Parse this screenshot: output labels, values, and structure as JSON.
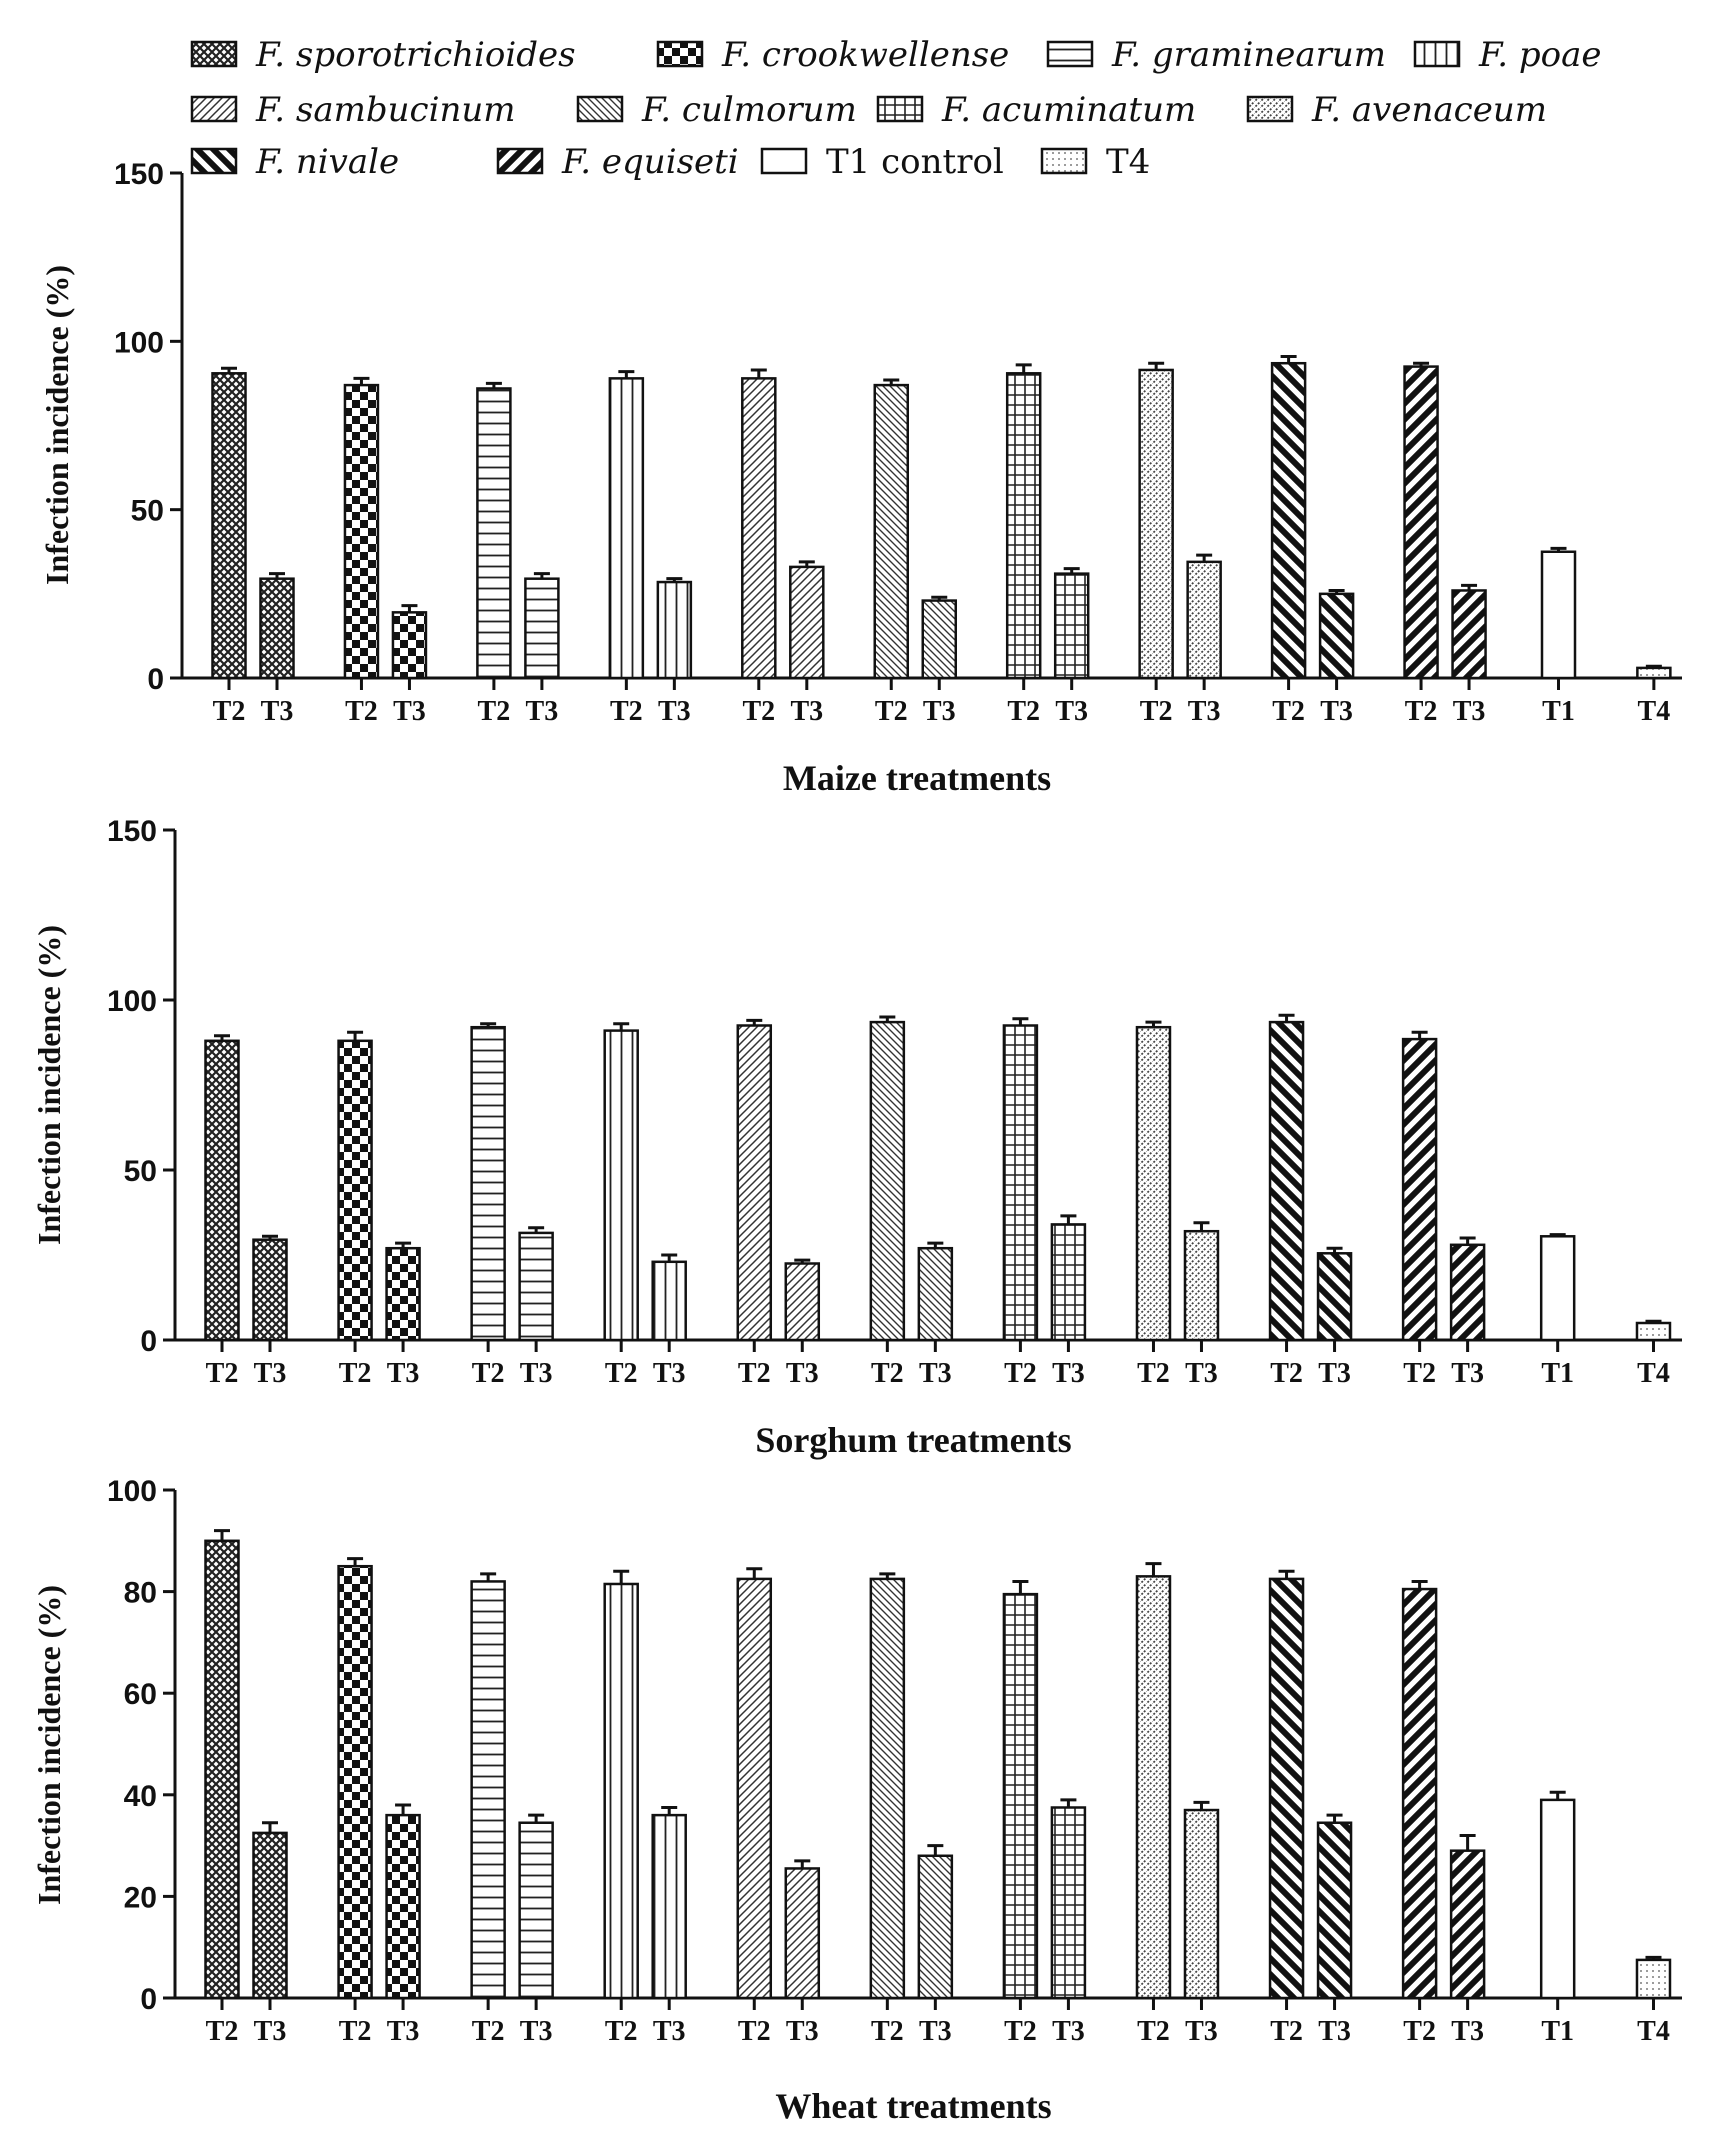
{
  "legend": {
    "entries": [
      {
        "name": "F. sporotrichioides",
        "pattern": "crosshatch-dense",
        "italic": true
      },
      {
        "name": "F. crookwellense",
        "pattern": "checker",
        "italic": true
      },
      {
        "name": "F. graminearum",
        "pattern": "hlines",
        "italic": true
      },
      {
        "name": "F. poae",
        "pattern": "vlines",
        "italic": true
      },
      {
        "name": "F. sambucinum",
        "pattern": "diag-fine",
        "italic": true
      },
      {
        "name": "F. culmorum",
        "pattern": "diag-back",
        "italic": true
      },
      {
        "name": "F. acuminatum",
        "pattern": "grid",
        "italic": true
      },
      {
        "name": "F. avenaceum",
        "pattern": "dots-diag",
        "italic": true
      },
      {
        "name": "F. nivale",
        "pattern": "diag-bold-back",
        "italic": true
      },
      {
        "name": "F. equiseti",
        "pattern": "diag-bold",
        "italic": true
      },
      {
        "name": "T1 control",
        "pattern": "none",
        "italic": false
      },
      {
        "name": "T4",
        "pattern": "dots",
        "italic": false
      }
    ]
  },
  "chart_data": [
    {
      "type": "bar",
      "title": "",
      "xlabel": "Maize treatments",
      "ylabel": "Infection incidence (%)",
      "ylim": [
        0,
        150
      ],
      "yticks": [
        0,
        50,
        100,
        150
      ],
      "categories": [
        "T2",
        "T3",
        "T2",
        "T3",
        "T2",
        "T3",
        "T2",
        "T3",
        "T2",
        "T3",
        "T2",
        "T3",
        "T2",
        "T3",
        "T2",
        "T3",
        "T2",
        "T3",
        "T2",
        "T3",
        "T1",
        "T4"
      ],
      "series_index": [
        0,
        0,
        1,
        1,
        2,
        2,
        3,
        3,
        4,
        4,
        5,
        5,
        6,
        6,
        7,
        7,
        8,
        8,
        9,
        9,
        10,
        11
      ],
      "values": [
        90.5,
        29.5,
        87,
        19.5,
        86,
        29.5,
        89,
        28.5,
        89,
        33,
        87,
        23,
        90.5,
        31,
        91.5,
        34.5,
        93.5,
        25,
        92.5,
        26,
        37.5,
        3
      ],
      "errors": [
        1.5,
        1.5,
        2,
        2,
        1.5,
        1.5,
        2,
        1,
        2.5,
        1.5,
        1.5,
        1,
        2.5,
        1.5,
        2,
        2,
        2,
        1,
        1,
        1.5,
        1,
        0.5
      ]
    },
    {
      "type": "bar",
      "title": "",
      "xlabel": "Sorghum treatments",
      "ylabel": "Infection incidence (%)",
      "ylim": [
        0,
        150
      ],
      "yticks": [
        0,
        50,
        100,
        150
      ],
      "categories": [
        "T2",
        "T3",
        "T2",
        "T3",
        "T2",
        "T3",
        "T2",
        "T3",
        "T2",
        "T3",
        "T2",
        "T3",
        "T2",
        "T3",
        "T2",
        "T3",
        "T2",
        "T3",
        "T2",
        "T3",
        "T1",
        "T4"
      ],
      "series_index": [
        0,
        0,
        1,
        1,
        2,
        2,
        3,
        3,
        4,
        4,
        5,
        5,
        6,
        6,
        7,
        7,
        8,
        8,
        9,
        9,
        10,
        11
      ],
      "values": [
        88,
        29.5,
        88,
        27,
        92,
        31.5,
        91,
        23,
        92.5,
        22.5,
        93.5,
        27,
        92.5,
        34,
        92,
        32,
        93.5,
        25.5,
        88.5,
        28,
        30.5,
        5
      ],
      "errors": [
        1.5,
        1,
        2.5,
        1.5,
        1,
        1.5,
        2,
        2,
        1.5,
        1,
        1.5,
        1.5,
        2,
        2.5,
        1.5,
        2.5,
        2,
        1.5,
        2,
        2,
        0.5,
        0.5
      ]
    },
    {
      "type": "bar",
      "title": "",
      "xlabel": "Wheat treatments",
      "ylabel": "Infection incidence (%)",
      "ylim": [
        0,
        100
      ],
      "yticks": [
        0,
        20,
        40,
        60,
        80,
        100
      ],
      "categories": [
        "T2",
        "T3",
        "T2",
        "T3",
        "T2",
        "T3",
        "T2",
        "T3",
        "T2",
        "T3",
        "T2",
        "T3",
        "T2",
        "T3",
        "T2",
        "T3",
        "T2",
        "T3",
        "T2",
        "T3",
        "T1",
        "T4"
      ],
      "series_index": [
        0,
        0,
        1,
        1,
        2,
        2,
        3,
        3,
        4,
        4,
        5,
        5,
        6,
        6,
        7,
        7,
        8,
        8,
        9,
        9,
        10,
        11
      ],
      "values": [
        90,
        32.5,
        85,
        36,
        82,
        34.5,
        81.5,
        36,
        82.5,
        25.5,
        82.5,
        28,
        79.5,
        37.5,
        83,
        37,
        82.5,
        34.5,
        80.5,
        29,
        39,
        7.5
      ],
      "errors": [
        2,
        2,
        1.5,
        2,
        1.5,
        1.5,
        2.5,
        1.5,
        2,
        1.5,
        1,
        2,
        2.5,
        1.5,
        2.5,
        1.5,
        1.5,
        1.5,
        1.5,
        3,
        1.5,
        0.5
      ]
    }
  ]
}
